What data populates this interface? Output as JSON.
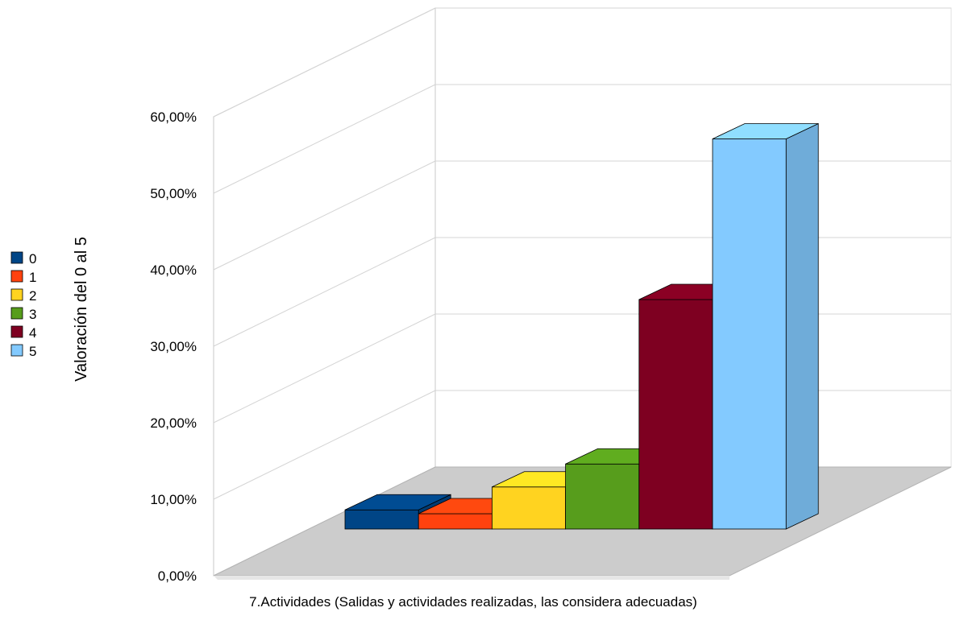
{
  "chart_data": {
    "type": "bar",
    "title": "",
    "xlabel": "7.Actividades (Salidas y actividades realizadas, las considera adecuadas)",
    "ylabel": "Valoración del 0 al 5",
    "ylim": [
      0,
      60
    ],
    "yticks": [
      "0,00%",
      "10,00%",
      "20,00%",
      "30,00%",
      "40,00%",
      "50,00%",
      "60,00%"
    ],
    "ytick_values": [
      0,
      10,
      20,
      30,
      40,
      50,
      60
    ],
    "grid": true,
    "three_d": true,
    "legend_position": "left",
    "series": [
      {
        "name": "0",
        "values": [
          2.5
        ],
        "color": "#004586"
      },
      {
        "name": "1",
        "values": [
          2.0
        ],
        "color": "#ff420e"
      },
      {
        "name": "2",
        "values": [
          5.5
        ],
        "color": "#ffd320"
      },
      {
        "name": "3",
        "values": [
          8.5
        ],
        "color": "#579d1c"
      },
      {
        "name": "4",
        "values": [
          30.0
        ],
        "color": "#7e0021"
      },
      {
        "name": "5",
        "values": [
          51.0
        ],
        "color": "#83caff"
      }
    ]
  }
}
